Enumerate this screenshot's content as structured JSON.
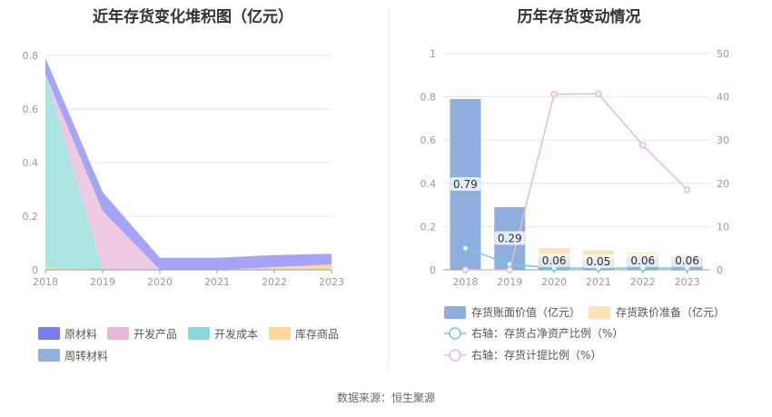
{
  "left_chart_title": "近年存货变化堆积图（亿元）",
  "right_chart_title": "历年存货变动情况",
  "source_text": "数据来源：恒生聚源",
  "chart_data": [
    {
      "type": "area",
      "stacked": true,
      "title": "近年存货变化堆积图（亿元）",
      "x": [
        "2018",
        "2019",
        "2020",
        "2021",
        "2022",
        "2023"
      ],
      "yticks": [
        "0",
        "0.2",
        "0.4",
        "0.6",
        "0.8"
      ],
      "ylim": [
        0,
        0.8
      ],
      "legend": "bottom",
      "series": [
        {
          "name": "库存商品",
          "color": "#fcd89a",
          "values": [
            0.01,
            0.0,
            0.0,
            0.0,
            0.01,
            0.02
          ]
        },
        {
          "name": "开发成本",
          "color": "#a8e2e2",
          "values": [
            0.72,
            0.0,
            0.0,
            0.0,
            0.0,
            0.0
          ]
        },
        {
          "name": "开发产品",
          "color": "#eec8e2",
          "values": [
            0.0,
            0.22,
            0.0,
            0.0,
            0.0,
            0.0
          ]
        },
        {
          "name": "周转材料",
          "color": "#8fb0dd",
          "values": [
            0.0,
            0.0,
            0.0,
            0.0,
            0.0,
            0.0
          ]
        },
        {
          "name": "原材料",
          "color": "#a0a0f5",
          "values": [
            0.06,
            0.07,
            0.045,
            0.045,
            0.045,
            0.04
          ]
        }
      ],
      "legend_order": [
        {
          "name": "原材料",
          "color": "#7b7bf0"
        },
        {
          "name": "开发产品",
          "color": "#e8b8d8"
        },
        {
          "name": "开发成本",
          "color": "#8ad8d8"
        },
        {
          "name": "库存商品",
          "color": "#fcd89a"
        },
        {
          "name": "周转材料",
          "color": "#8fb0dd"
        }
      ]
    },
    {
      "type": "bar",
      "title": "历年存货变动情况",
      "categories": [
        "2018",
        "2019",
        "2020",
        "2021",
        "2022",
        "2023"
      ],
      "yticks_left": [
        "0",
        "0.2",
        "0.4",
        "0.6",
        "0.8",
        "1"
      ],
      "ylim_left": [
        0,
        1
      ],
      "yticks_right": [
        "0",
        "10",
        "20",
        "30",
        "40",
        "50"
      ],
      "ylim_right": [
        0,
        50
      ],
      "legend": "bottom",
      "series": [
        {
          "name": "存货账面价值（亿元）",
          "color": "#8eaedd",
          "values": [
            0.79,
            0.29,
            0.06,
            0.05,
            0.06,
            0.06
          ],
          "labels": [
            "0.79",
            "0.29",
            "0.06",
            "0.05",
            "0.06",
            "0.06"
          ]
        },
        {
          "name": "存货跌价准备（亿元）",
          "color": "#fde3b5",
          "values": [
            0.0,
            0.0,
            0.04,
            0.04,
            0.02,
            0.01
          ]
        }
      ],
      "line_series": [
        {
          "name": "右轴：存货占净资产比例（%）",
          "color": "#6dcfd6",
          "values": [
            5.0,
            1.3,
            0.4,
            0.4,
            0.4,
            0.4
          ]
        },
        {
          "name": "右轴：存货计提比例（%）",
          "color": "#e4b8dd",
          "values": [
            0.0,
            0.0,
            40.6,
            40.7,
            28.8,
            18.5
          ]
        }
      ]
    }
  ]
}
